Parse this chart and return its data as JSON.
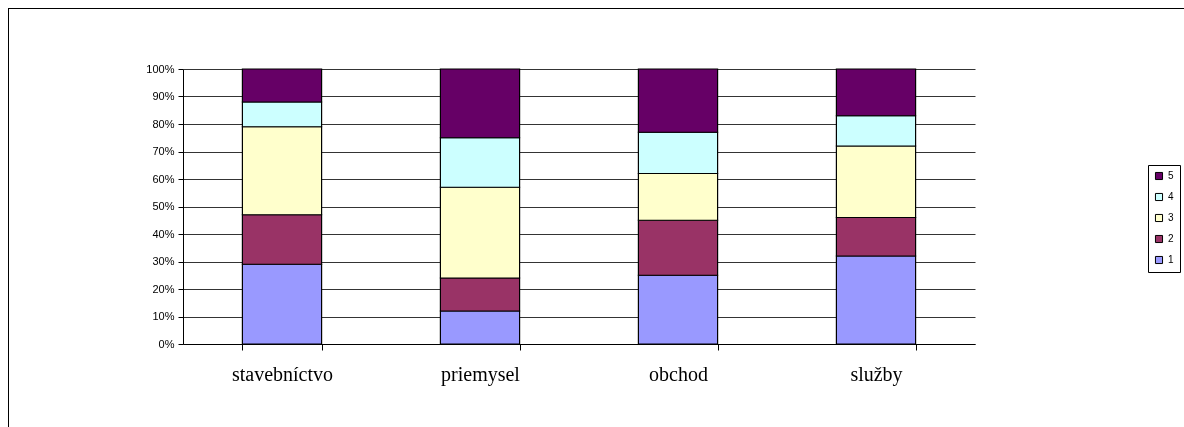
{
  "chart_data": {
    "type": "bar",
    "stacked": true,
    "categories": [
      "stavebníctvo",
      "priemysel",
      "obchod",
      "služby"
    ],
    "series": [
      {
        "name": "1",
        "color": "#9999ff",
        "values": [
          29,
          12,
          25,
          32
        ]
      },
      {
        "name": "2",
        "color": "#993366",
        "values": [
          18,
          12,
          20,
          14
        ]
      },
      {
        "name": "3",
        "color": "#ffffcc",
        "values": [
          32,
          33,
          17,
          26
        ]
      },
      {
        "name": "4",
        "color": "#ccffff",
        "values": [
          9,
          18,
          15,
          11
        ]
      },
      {
        "name": "5",
        "color": "#660066",
        "values": [
          12,
          25,
          23,
          17
        ]
      }
    ],
    "ylim": [
      0,
      100
    ],
    "yticks": [
      {
        "value": 0,
        "label": "0%"
      },
      {
        "value": 10,
        "label": "10%"
      },
      {
        "value": 20,
        "label": "20%"
      },
      {
        "value": 30,
        "label": "30%"
      },
      {
        "value": 40,
        "label": "40%"
      },
      {
        "value": 50,
        "label": "50%"
      },
      {
        "value": 60,
        "label": "60%"
      },
      {
        "value": 70,
        "label": "70%"
      },
      {
        "value": 80,
        "label": "80%"
      },
      {
        "value": 90,
        "label": "90%"
      },
      {
        "value": 100,
        "label": "100%"
      }
    ],
    "grid": "y",
    "legend": "right"
  }
}
